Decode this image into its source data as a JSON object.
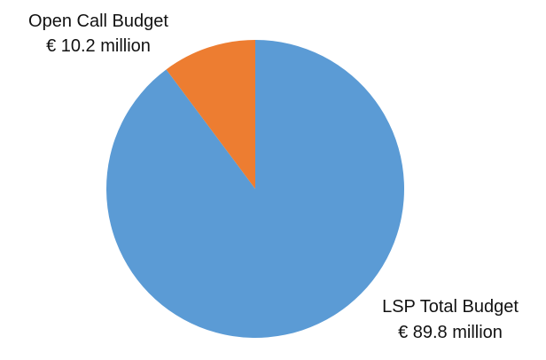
{
  "chart_data": {
    "type": "pie",
    "categories": [
      "LSP Total Budget",
      "Open Call Budget"
    ],
    "values": [
      89.8,
      10.2
    ],
    "value_labels": [
      "€ 89.8 million",
      "€ 10.2 million"
    ],
    "colors": [
      "#5B9BD5",
      "#ED7D31"
    ],
    "legend": "none"
  }
}
